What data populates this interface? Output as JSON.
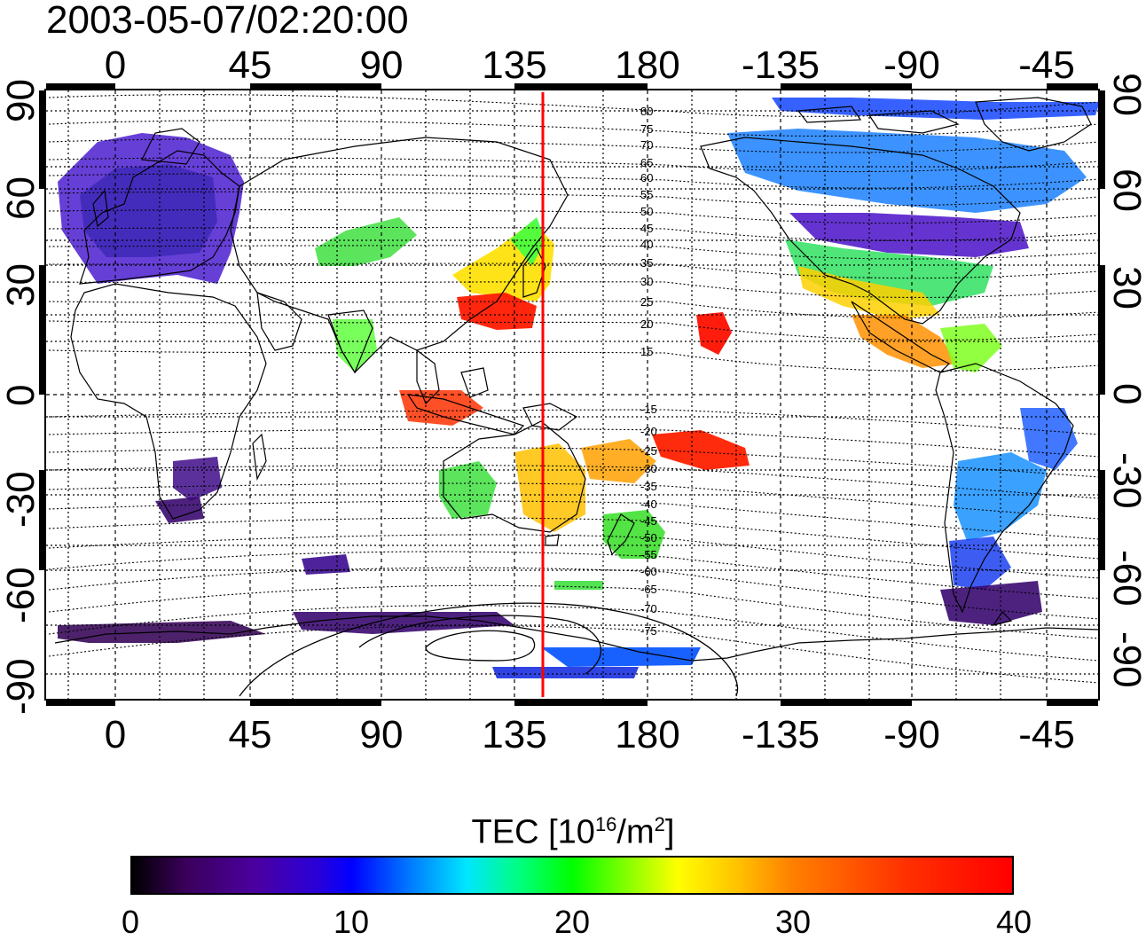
{
  "title": "2003-05-07/02:20:00",
  "lon_ticks": [
    "0",
    "45",
    "90",
    "135",
    "180",
    "-135",
    "-90",
    "-45"
  ],
  "lat_ticks": [
    "90",
    "60",
    "30",
    "0",
    "-30",
    "-60",
    "-90"
  ],
  "mlat_labels": [
    "80",
    "75",
    "70",
    "65",
    "60",
    "55",
    "50",
    "45",
    "40",
    "35",
    "30",
    "25",
    "20",
    "15",
    "-15",
    "-20",
    "-25",
    "-30",
    "-35",
    "-40",
    "-45",
    "-50",
    "-55",
    "-60",
    "-65",
    "-70",
    "-75"
  ],
  "colorbar": {
    "title_prefix": "TEC  [10",
    "title_exp1": "16",
    "title_mid": "/m",
    "title_exp2": "2",
    "title_suffix": "]",
    "ticks": [
      "0",
      "10",
      "20",
      "30",
      "40"
    ],
    "range": [
      0,
      40
    ]
  },
  "meridian_marker": {
    "longitude": 144,
    "color": "#ff0000"
  },
  "colors": {
    "frame": "#000000",
    "grid": "#000000"
  }
}
